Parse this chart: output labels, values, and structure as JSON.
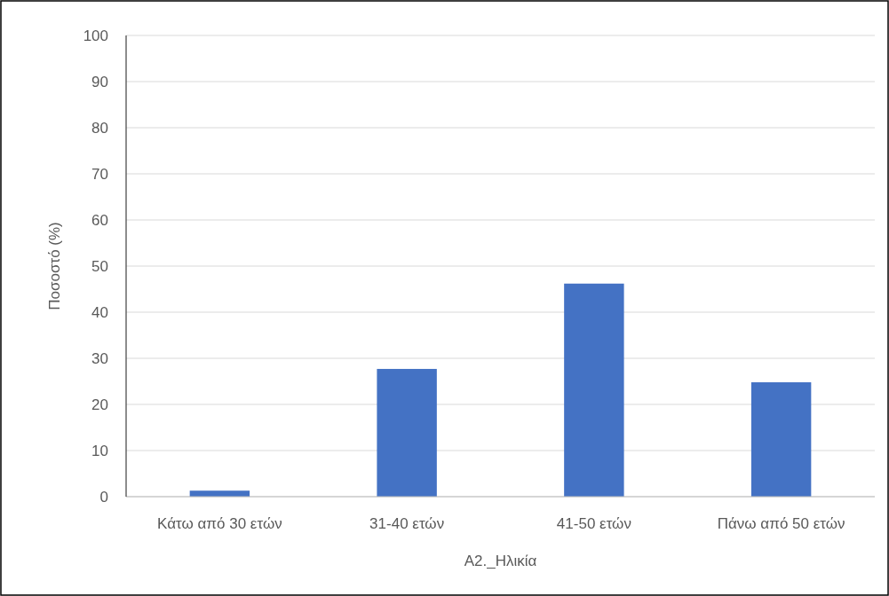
{
  "chart_data": {
    "type": "bar",
    "xlabel": "A2._Ηλικία",
    "ylabel": "Ποσοστό (%)",
    "categories": [
      "Κάτω από 30 ετών",
      "31-40 ετών",
      "41-50 ετών",
      "Πάνω από 50 ετών"
    ],
    "values": [
      1.3,
      27.7,
      46.2,
      24.8
    ],
    "color": "#4472c4",
    "ylim": [
      0,
      100
    ],
    "yticks": [
      0,
      10,
      20,
      30,
      40,
      50,
      60,
      70,
      80,
      90,
      100
    ],
    "grid": "y"
  }
}
